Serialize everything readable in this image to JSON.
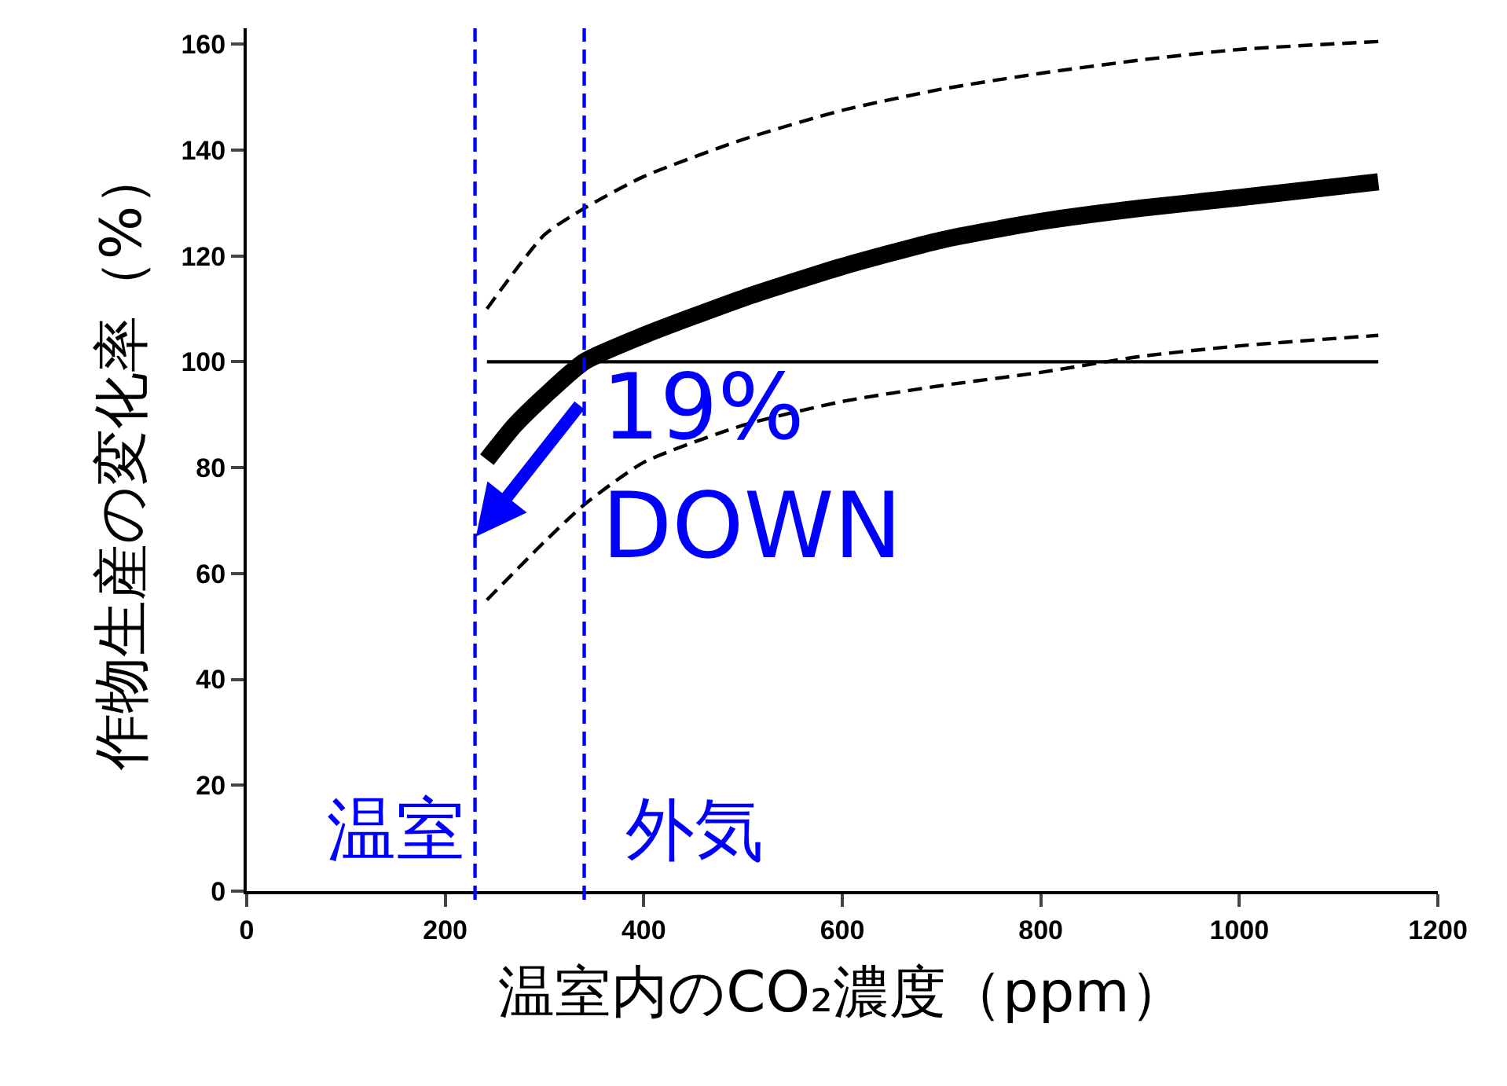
{
  "chart_data": {
    "type": "line",
    "xlabel": "温室内のCO₂濃度（ppm）",
    "ylabel": "作物生産の変化率（%）",
    "xlim": [
      0,
      1200
    ],
    "xticks": [
      0,
      200,
      400,
      600,
      800,
      1000,
      1200
    ],
    "ylim": [
      0,
      163
    ],
    "yticks": [
      0,
      20,
      40,
      60,
      80,
      100,
      120,
      140,
      160
    ],
    "marker": "none",
    "series": [
      {
        "color": "#000000",
        "line_style": "solid",
        "x": [
          242,
          270,
          300,
          340,
          400,
          500,
          600,
          700,
          800,
          900,
          1000,
          1140
        ],
        "values": [
          81.5,
          88,
          93.5,
          100,
          105,
          112,
          118,
          123,
          126.5,
          129,
          131,
          134
        ]
      },
      {
        "color": "#000000",
        "line_style": "dashed",
        "x": [
          242,
          300,
          340,
          400,
          500,
          600,
          700,
          800,
          900,
          1000,
          1140
        ],
        "values": [
          110,
          124,
          129,
          135,
          142,
          147.5,
          151.5,
          154.5,
          157,
          159,
          160.5
        ]
      },
      {
        "color": "#000000",
        "line_style": "dashed",
        "x": [
          242,
          300,
          340,
          400,
          500,
          600,
          700,
          800,
          900,
          1000,
          1140
        ],
        "values": [
          55,
          66,
          73,
          81,
          88,
          92.5,
          95.5,
          98,
          101,
          103,
          105
        ]
      },
      {
        "color": "#000000",
        "line_style": "solid",
        "x": [
          242,
          1140
        ],
        "values": [
          100,
          100
        ]
      }
    ],
    "ref_lines": [
      {
        "axis": "x",
        "value": 230,
        "label": "温室",
        "color": "#0000ff",
        "line_style": "dashed"
      },
      {
        "axis": "x",
        "value": 340,
        "label": "外気",
        "color": "#0000ff",
        "line_style": "dashed"
      }
    ],
    "annotations": [
      {
        "text": "19%\nDOWN",
        "x": 231,
        "y": 67
      }
    ]
  }
}
